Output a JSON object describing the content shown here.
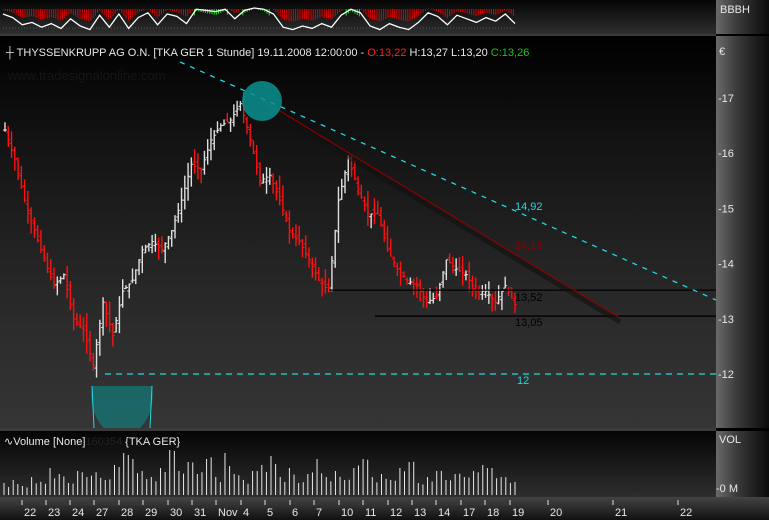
{
  "header": {
    "symbol": "THYSSENKRUPP AG O.N. [TKA GER  1 Stunde]",
    "datetime": "19.11.2008 12:00:00 -",
    "open": "O:13,22",
    "high": "H:13,27",
    "low": "L:13,20",
    "close": "C:13,26"
  },
  "watermark": "www.tradesignalonline.com",
  "indicator": {
    "label": "BBBH",
    "values": [
      0.5,
      0.2,
      -0.4,
      -0.2,
      -0.6,
      -0.3,
      -0.7,
      0.1,
      -0.5,
      -0.8,
      0.4,
      -0.6,
      0.5,
      -0.7,
      0.2,
      0.6,
      -0.4,
      0.5,
      0.3,
      -0.3,
      0.9,
      0.8,
      0.7,
      0.9,
      0.1,
      0.8,
      1.0,
      0.9,
      0.5,
      -0.6,
      -0.8,
      -0.5,
      -0.7,
      -0.3,
      -0.6,
      0.4,
      0.9,
      0.6,
      -0.5,
      -0.8,
      -0.3,
      -0.6,
      -0.8,
      -0.2,
      0.6,
      0.3,
      -0.4,
      0.4,
      0.1,
      -0.2,
      0.2,
      -0.1,
      0.5,
      -0.3
    ],
    "colors": {
      "positive": "#20e020",
      "negative": "#e00000",
      "line": "#ffffff"
    }
  },
  "chart_data": {
    "type": "ohlc",
    "title": "THYSSENKRUPP AG O.N. [TKA GER  1 Stunde]",
    "currency_label": "€",
    "ylim": [
      11.1,
      17.8
    ],
    "yticks": [
      "17",
      "16",
      "15",
      "14",
      "13",
      "12"
    ],
    "x_ticks": [
      "22",
      "23",
      "24",
      "27",
      "28",
      "29",
      "30",
      "31",
      "Nov",
      "4",
      "5",
      "6",
      "7",
      "10",
      "11",
      "12",
      "13",
      "14",
      "17",
      "18",
      "19",
      "20",
      "21",
      "22"
    ],
    "closes": [
      16.42,
      15.88,
      15.15,
      14.6,
      14.07,
      13.6,
      13.8,
      13.0,
      12.8,
      12.15,
      13.3,
      12.7,
      13.5,
      13.7,
      14.25,
      14.4,
      14.25,
      14.6,
      15.15,
      15.8,
      15.7,
      16.24,
      16.5,
      16.6,
      16.9,
      16.25,
      15.5,
      15.6,
      15.15,
      14.6,
      14.4,
      14.07,
      13.7,
      13.5,
      15.15,
      15.9,
      15.35,
      14.9,
      14.9,
      14.25,
      13.9,
      13.7,
      13.6,
      13.3,
      13.4,
      14.07,
      13.9,
      13.8,
      13.5,
      13.5,
      13.3,
      13.6,
      13.26
    ],
    "levels": [
      {
        "label": "14,92",
        "type": "trendline",
        "color": "#20d8e0",
        "style": "dashed"
      },
      {
        "label": "14,18",
        "type": "trendline",
        "color": "#8a0000",
        "style": "solid"
      },
      {
        "label": "13,52",
        "value": 13.52,
        "color": "#000000",
        "style": "solid"
      },
      {
        "label": "13,05",
        "value": 13.05,
        "color": "#000000",
        "style": "solid"
      },
      {
        "label": "12",
        "value": 12.0,
        "color": "#20d8e0",
        "style": "dashed"
      }
    ],
    "bar_colors": {
      "up": "#e0e0e0",
      "down": "#ff1010"
    },
    "highlight_color": "#0a9090"
  },
  "volume": {
    "title": "Volume [None]",
    "last_value": "160354",
    "symbol": "{TKA GER}",
    "axis_label": "VOL",
    "zero_label": "-0 M",
    "values": [
      20,
      25,
      15,
      30,
      22,
      45,
      35,
      20,
      40,
      30,
      38,
      25,
      50,
      70,
      60,
      40,
      30,
      45,
      75,
      40,
      55,
      35,
      60,
      30,
      70,
      35,
      25,
      40,
      50,
      65,
      30,
      45,
      20,
      35,
      60,
      30,
      40,
      25,
      45,
      60,
      30,
      35,
      25,
      45,
      55,
      20,
      30,
      40,
      25,
      35,
      30,
      40,
      50,
      45,
      30,
      20
    ]
  }
}
